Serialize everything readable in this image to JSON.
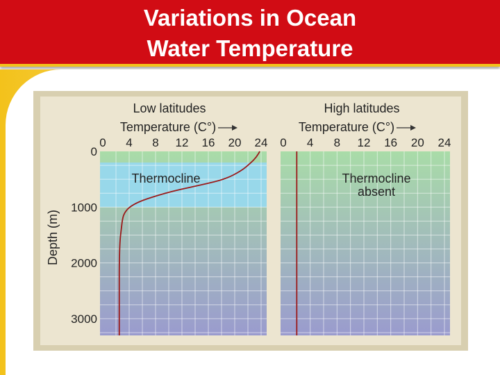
{
  "title": {
    "line1": "Variations in Ocean",
    "line2": "Water Temperature"
  },
  "colors": {
    "title_bg": "#d10c14",
    "title_accent": "#f3c21b",
    "figure_border": "#d8cfb0",
    "curve": "#9b1a1a",
    "thermocline_band": "#98d8ea",
    "water_top": "#a9dca8",
    "water_bottom": "#9a9bce"
  },
  "chart_data": [
    {
      "type": "line",
      "panel_title": "Low latitudes",
      "xlabel": "Temperature (C°)",
      "ylabel": "Depth (m)",
      "xlim": [
        0,
        24
      ],
      "ylim": [
        0,
        3300
      ],
      "y_inverted": true,
      "xticks": [
        "0",
        "4",
        "8",
        "12",
        "16",
        "20",
        "24"
      ],
      "yticks": [
        "0",
        "1000",
        "2000",
        "3000"
      ],
      "yticks_values": [
        0,
        1000,
        2000,
        3000
      ],
      "band": {
        "label": "Thermocline",
        "from": 200,
        "to": 1000
      },
      "series": [
        {
          "x": [
            23.8,
            23.3,
            22.5,
            21,
            18.5,
            15,
            11,
            8,
            5.5,
            4,
            3.3,
            3,
            2.8,
            2.6,
            2.5,
            2.5,
            2.5,
            2.5
          ],
          "y": [
            0,
            100,
            200,
            350,
            500,
            600,
            700,
            800,
            900,
            1000,
            1100,
            1200,
            1400,
            1600,
            2000,
            2500,
            3000,
            3300
          ]
        }
      ]
    },
    {
      "type": "line",
      "panel_title": "High latitudes",
      "xlabel": "Temperature (C°)",
      "xlim": [
        0,
        24
      ],
      "ylim": [
        0,
        3300
      ],
      "y_inverted": true,
      "xticks": [
        "0",
        "4",
        "8",
        "12",
        "16",
        "20",
        "24"
      ],
      "annotation": "Thermocline\nabsent",
      "series": [
        {
          "x": [
            2,
            2
          ],
          "y": [
            0,
            3300
          ]
        }
      ]
    }
  ]
}
